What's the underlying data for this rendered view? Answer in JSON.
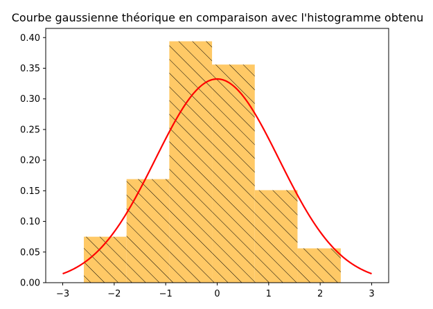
{
  "chart_data": {
    "type": "bar",
    "title": "Courbe gaussienne théorique en comparaison avec l'histogramme obtenu",
    "xlabel": "",
    "ylabel": "",
    "xlim": [
      -3.33,
      3.33
    ],
    "ylim": [
      0,
      0.415
    ],
    "grid": false,
    "x_ticks": [
      -3,
      -2,
      -1,
      0,
      1,
      2,
      3
    ],
    "x_tick_labels": [
      "−3",
      "−2",
      "−1",
      "0",
      "1",
      "2",
      "3"
    ],
    "y_ticks": [
      0.0,
      0.05,
      0.1,
      0.15,
      0.2,
      0.25,
      0.3,
      0.35,
      0.4
    ],
    "y_tick_labels": [
      "0.00",
      "0.05",
      "0.10",
      "0.15",
      "0.20",
      "0.25",
      "0.30",
      "0.35",
      "0.40"
    ],
    "histogram": {
      "bin_edges": [
        -2.59,
        -1.76,
        -0.93,
        -0.1,
        0.73,
        1.56,
        2.4
      ],
      "values": [
        0.075,
        0.169,
        0.394,
        0.356,
        0.151,
        0.056
      ],
      "color": "#ffc966",
      "hatch": "diagonal"
    },
    "curve": {
      "type": "gaussian",
      "mean": 0.0,
      "std": 1.2,
      "x_range": [
        -3,
        3
      ],
      "color": "#ff0000"
    }
  }
}
